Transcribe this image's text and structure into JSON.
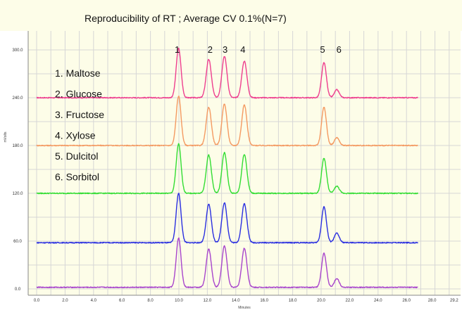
{
  "chart_data": {
    "type": "line",
    "title": "Reproducibility of RT ;   Average CV 0.1%(N=7)",
    "xlabel": "Minutes",
    "ylabel": "mVolts",
    "xlim": [
      -1.5,
      30.0
    ],
    "ylim": [
      0,
      340
    ],
    "x_ticks": [
      "0.0",
      "2.0",
      "4.0",
      "6.0",
      "8.0",
      "10.0",
      "12.0",
      "14.0",
      "16.0",
      "18.0",
      "20.0",
      "22.0",
      "24.0",
      "26.0",
      "28.0",
      "29.2"
    ],
    "x_tick_values": [
      0,
      2,
      4,
      6,
      8,
      10,
      12,
      14,
      16,
      18,
      20,
      22,
      24,
      26,
      28,
      29.2
    ],
    "y_ticks": [
      "0.0",
      "60.0",
      "120.0",
      "180.0",
      "240.0",
      "300.0"
    ],
    "y_tick_values": [
      0,
      60,
      120,
      180,
      240,
      300
    ],
    "grid": true,
    "plot_background": "#fdfde8",
    "trace_x_range": [
      0,
      26.8
    ],
    "peak_numbers": [
      "1",
      "2",
      "3",
      "4",
      "5",
      "6"
    ],
    "peak_retention_times": [
      9.98,
      12.1,
      13.2,
      14.6,
      20.2,
      21.1
    ],
    "legend": [
      "1.  Maltose",
      "2.  Glucose",
      "3.  Fructose",
      "4.  Xylose",
      "5.  Dulcitol",
      "6.  Sorbitol"
    ],
    "series": [
      {
        "color": "#ee3f8f",
        "baseline": 240,
        "peak_heights": [
          62,
          48,
          52,
          46,
          44,
          10
        ]
      },
      {
        "color": "#f49a62",
        "baseline": 180,
        "peak_heights": [
          62,
          48,
          52,
          51,
          48,
          10
        ]
      },
      {
        "color": "#33dd33",
        "baseline": 120,
        "peak_heights": [
          62,
          48,
          51,
          49,
          44,
          9
        ]
      },
      {
        "color": "#2a2fe0",
        "baseline": 58,
        "peak_heights": [
          62,
          48,
          50,
          49,
          45,
          12
        ]
      },
      {
        "color": "#a845cc",
        "baseline": 2,
        "peak_heights": [
          62,
          48,
          52,
          49,
          43,
          11
        ]
      }
    ]
  }
}
